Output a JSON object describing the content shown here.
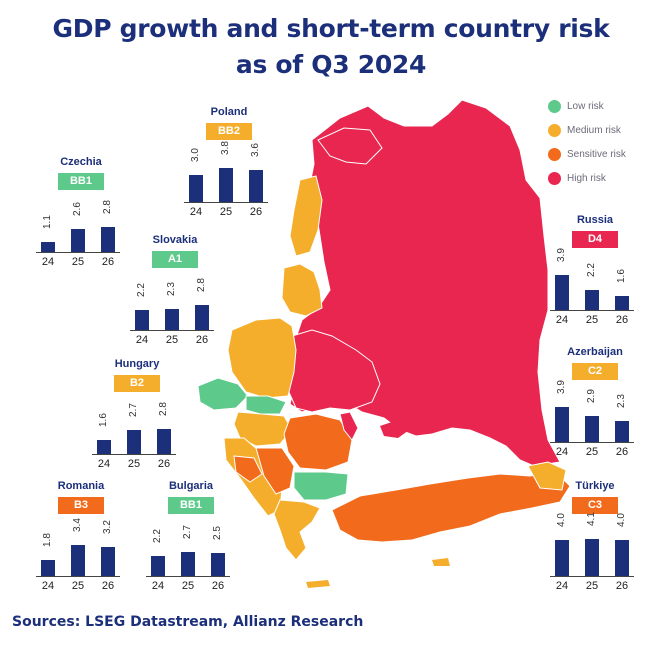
{
  "title_line1": "GDP growth and short-term country risk",
  "title_line2": "as of Q3 2024",
  "legend": [
    {
      "label": "Low risk",
      "color": "#5dc98a"
    },
    {
      "label": "Medium risk",
      "color": "#f5ae2c"
    },
    {
      "label": "Sensitive risk",
      "color": "#f26a1b"
    },
    {
      "label": "High risk",
      "color": "#e8264f"
    }
  ],
  "source": "Sources: LSEG Datastream, Allianz Research",
  "chart_data": {
    "type": "bar",
    "categories": [
      "24",
      "25",
      "26"
    ],
    "ylim": [
      0,
      4.5
    ],
    "countries": [
      {
        "name": "Poland",
        "rating": "BB2",
        "risk": "Medium risk",
        "values": [
          3.0,
          3.8,
          3.6
        ]
      },
      {
        "name": "Czechia",
        "rating": "BB1",
        "risk": "Low risk",
        "values": [
          1.1,
          2.6,
          2.8
        ]
      },
      {
        "name": "Slovakia",
        "rating": "A1",
        "risk": "Low risk",
        "values": [
          2.2,
          2.3,
          2.8
        ]
      },
      {
        "name": "Hungary",
        "rating": "B2",
        "risk": "Medium risk",
        "values": [
          1.6,
          2.7,
          2.8
        ]
      },
      {
        "name": "Romania",
        "rating": "B3",
        "risk": "Sensitive risk",
        "values": [
          1.8,
          3.4,
          3.2
        ]
      },
      {
        "name": "Bulgaria",
        "rating": "BB1",
        "risk": "Low risk",
        "values": [
          2.2,
          2.7,
          2.5
        ]
      },
      {
        "name": "Russia",
        "rating": "D4",
        "risk": "High risk",
        "values": [
          3.9,
          2.2,
          1.6
        ]
      },
      {
        "name": "Azerbaijan",
        "rating": "C2",
        "risk": "Medium risk",
        "values": [
          3.9,
          2.9,
          2.3
        ]
      },
      {
        "name": "Türkiye",
        "rating": "C3",
        "risk": "Sensitive risk",
        "values": [
          4.0,
          4.1,
          4.0
        ]
      }
    ]
  }
}
